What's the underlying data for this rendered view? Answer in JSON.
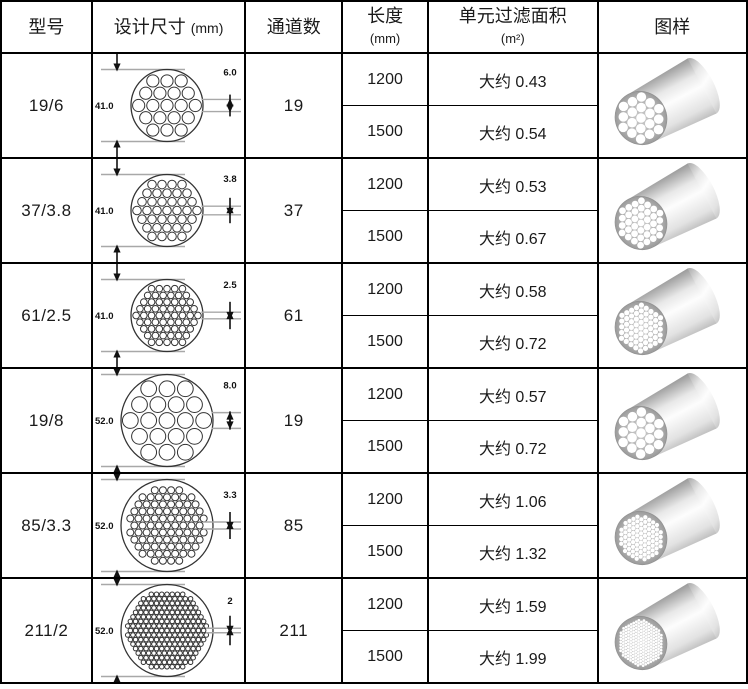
{
  "table": {
    "header": {
      "col_model": "型号",
      "col_design": "设计尺寸",
      "col_design_unit": "(mm)",
      "col_channels": "通道数",
      "col_length_line1": "长度",
      "col_length_line2": "(mm)",
      "col_area_line1": "单元过滤面积",
      "col_area_line2": "(m²)",
      "col_drawing": "图样"
    },
    "rows": [
      {
        "model": "19/6",
        "channels": "19",
        "diagram": {
          "outer_dim": "41.0",
          "hole_dim": "6.0",
          "rings": 2,
          "trim_corners": false
        },
        "variants": [
          {
            "length": "1200",
            "area": "大约 0.43"
          },
          {
            "length": "1500",
            "area": "大约 0.54"
          }
        ]
      },
      {
        "model": "37/3.8",
        "channels": "37",
        "diagram": {
          "outer_dim": "41.0",
          "hole_dim": "3.8",
          "rings": 3,
          "trim_corners": false
        },
        "variants": [
          {
            "length": "1200",
            "area": "大约 0.53"
          },
          {
            "length": "1500",
            "area": "大约 0.67"
          }
        ]
      },
      {
        "model": "61/2.5",
        "channels": "61",
        "diagram": {
          "outer_dim": "41.0",
          "hole_dim": "2.5",
          "rings": 4,
          "trim_corners": false
        },
        "variants": [
          {
            "length": "1200",
            "area": "大约 0.58"
          },
          {
            "length": "1500",
            "area": "大约 0.72"
          }
        ]
      },
      {
        "model": "19/8",
        "channels": "19",
        "diagram": {
          "outer_dim": "52.0",
          "hole_dim": "8.0",
          "rings": 2,
          "trim_corners": false
        },
        "variants": [
          {
            "length": "1200",
            "area": "大约 0.57"
          },
          {
            "length": "1500",
            "area": "大约 0.72"
          }
        ]
      },
      {
        "model": "85/3.3",
        "channels": "85",
        "diagram": {
          "outer_dim": "52.0",
          "hole_dim": "3.3",
          "rings": 5,
          "trim_corners": true
        },
        "variants": [
          {
            "length": "1200",
            "area": "大约 1.06"
          },
          {
            "length": "1500",
            "area": "大约 1.32"
          }
        ]
      },
      {
        "model": "211/2",
        "channels": "211",
        "diagram": {
          "outer_dim": "52.0",
          "hole_dim": "2",
          "rings": 8,
          "trim_corners": true
        },
        "variants": [
          {
            "length": "1200",
            "area": "大约 1.59"
          },
          {
            "length": "1500",
            "area": "大约 1.99"
          }
        ]
      }
    ]
  },
  "colors": {
    "grid_line": "#000000",
    "text": "#1a1a1a",
    "dim_line_gray": "#a8a8a8",
    "face_gray": "#9a9a9a",
    "body_highlight": "#fdfdfd"
  }
}
